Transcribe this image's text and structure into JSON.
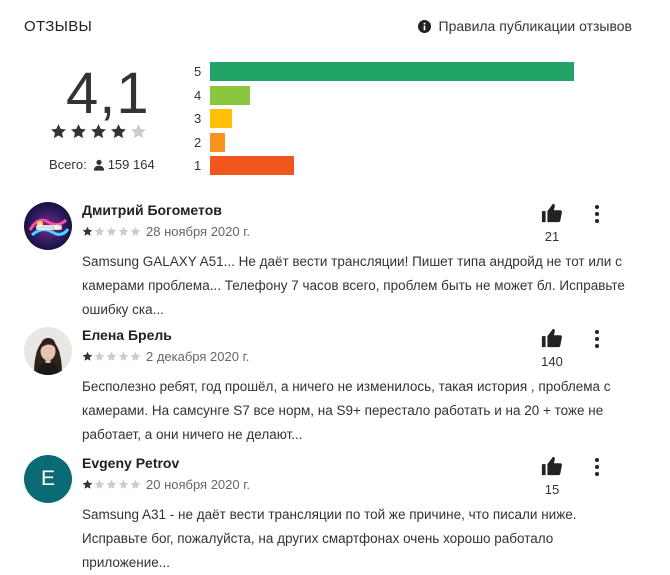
{
  "header": {
    "section_title": "ОТЗЫВЫ",
    "policy_link": "Правила публикации отзывов"
  },
  "summary": {
    "rating": "4,1",
    "stars_filled": 4,
    "total_label": "Всего:",
    "total_count": "159 164"
  },
  "histogram": [
    {
      "label": "5",
      "fraction": 1.0,
      "color": "#21a366"
    },
    {
      "label": "4",
      "fraction": 0.11,
      "color": "#8cc63f"
    },
    {
      "label": "3",
      "fraction": 0.06,
      "color": "#ffc107"
    },
    {
      "label": "2",
      "fraction": 0.04,
      "color": "#f7931e"
    },
    {
      "label": "1",
      "fraction": 0.23,
      "color": "#f1561d"
    }
  ],
  "colors": {
    "star_filled": "#333333",
    "star_empty": "#cccccc",
    "avatar_e_bg": "#0b6b74"
  },
  "reviews": [
    {
      "author": "Дмитрий Богометов",
      "stars": 1,
      "date": "28 ноября 2020 г.",
      "likes": "21",
      "text": "Samsung GALAXY A51... Не даёт вести трансляции! Пишет типа андройд не тот или с камерами проблема... Телефону 7 часов всего, проблем быть не может бл. Исправьте ошибку ска...",
      "avatar": "colorful-logo"
    },
    {
      "author": "Елена Брель",
      "stars": 1,
      "date": "2 декабря 2020 г.",
      "likes": "140",
      "text": "Бесполезно ребят, год прошёл, а ничего не изменилось, такая история , проблема с камерами. На самсунге S7 все норм, на S9+ перестало работать и на 20 + тоже не работает, а они ничего не делают...",
      "avatar": "photo-woman"
    },
    {
      "author": "Evgeny Petrov",
      "stars": 1,
      "date": "20 ноября 2020 г.",
      "likes": "15",
      "text": "Samsung A31 - не даёт вести трансляции по той же причине, что писали ниже. Исправьте бог, пожалуйста, на других смартфонах очень хорошо работало приложение...",
      "avatar_letter": "E"
    }
  ]
}
